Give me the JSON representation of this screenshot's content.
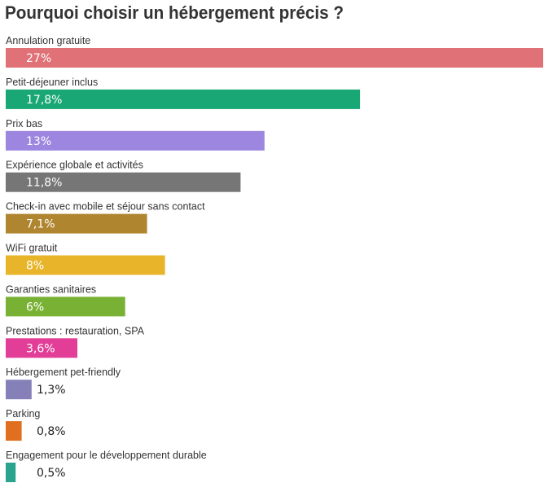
{
  "chart_data": {
    "type": "bar",
    "orientation": "horizontal",
    "title": "Pourquoi choisir un hébergement précis ?",
    "xlabel": "",
    "ylabel": "",
    "xlim": [
      0,
      27
    ],
    "grid": false,
    "legend": "none",
    "categories": [
      "Annulation gratuite",
      "Petit-déjeuner inclus",
      "Prix bas",
      "Expérience globale et activités",
      "Check-in avec mobile et séjour sans contact",
      "WiFi gratuit",
      "Garanties sanitaires",
      "Prestations : restauration, SPA",
      "Hébergement pet-friendly",
      "Parking",
      "Engagement pour le développement durable"
    ],
    "values": [
      27,
      17.8,
      13,
      11.8,
      7.1,
      8,
      6,
      3.6,
      1.3,
      0.8,
      0.5
    ],
    "value_labels": [
      "27%",
      "17,8%",
      "13%",
      "11,8%",
      "7,1%",
      "8%",
      "6%",
      "3,6%",
      "1,3%",
      "0,8%",
      "0,5%"
    ],
    "colors": [
      "#e07177",
      "#1aa776",
      "#9d86e0",
      "#767676",
      "#b0852f",
      "#e8b52a",
      "#79b135",
      "#e23e97",
      "#8581b8",
      "#e0701f",
      "#2aa48e"
    ]
  }
}
